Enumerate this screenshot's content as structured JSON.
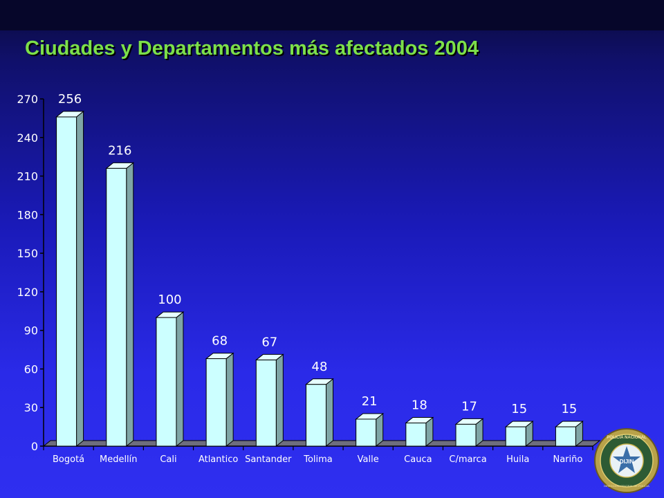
{
  "chart_data": {
    "type": "bar",
    "title": "Ciudades y Departamentos más afectados 2004",
    "categories": [
      "Bogotá",
      "Medellín",
      "Cali",
      "Atlantico",
      "Santander",
      "Tolima",
      "Valle",
      "Cauca",
      "C/marca",
      "Huila",
      "Nariño"
    ],
    "values": [
      256,
      216,
      100,
      68,
      67,
      48,
      21,
      18,
      17,
      15,
      15
    ],
    "data_labels": [
      "256",
      "216",
      "100",
      "68",
      "67",
      "48",
      "21",
      "18",
      "17",
      "15",
      "15"
    ],
    "y_ticks": [
      0,
      30,
      60,
      90,
      120,
      150,
      180,
      210,
      240,
      270
    ],
    "ylim": [
      0,
      270
    ],
    "grid": false,
    "legend": "none",
    "colors": {
      "bar_front": "#ccffff",
      "bar_top": "#e6ffff",
      "bar_side": "#7fa6a6",
      "floor": "#6e6e7e",
      "text": "#ffffff",
      "title": "#7ce04a"
    }
  },
  "seal": {
    "text_top": "POLICIA NACIONAL",
    "center": "DIJIN",
    "text_bottom": "DIRECCION CENTRAL DE POLICIA"
  }
}
